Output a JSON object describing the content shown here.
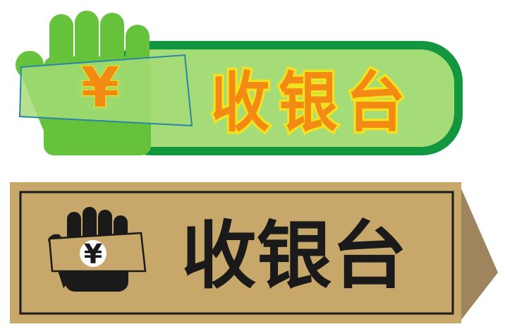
{
  "signs": [
    {
      "label": "收银台",
      "symbol": "¥",
      "style": "green",
      "colors": {
        "outer_border": "#12963f",
        "panel": "#a6dc78",
        "hand": "#66c23a",
        "text_fill": "#f28a14",
        "text_outline": "#f3e21e",
        "note_border": "#2a86a6"
      }
    },
    {
      "label": "收银台",
      "symbol": "¥",
      "style": "gold",
      "colors": {
        "plate": "#c8a86a",
        "arrow_side": "#9e855e",
        "ink": "#1a1a1a",
        "symbol_bg": "#ffffff"
      }
    }
  ]
}
